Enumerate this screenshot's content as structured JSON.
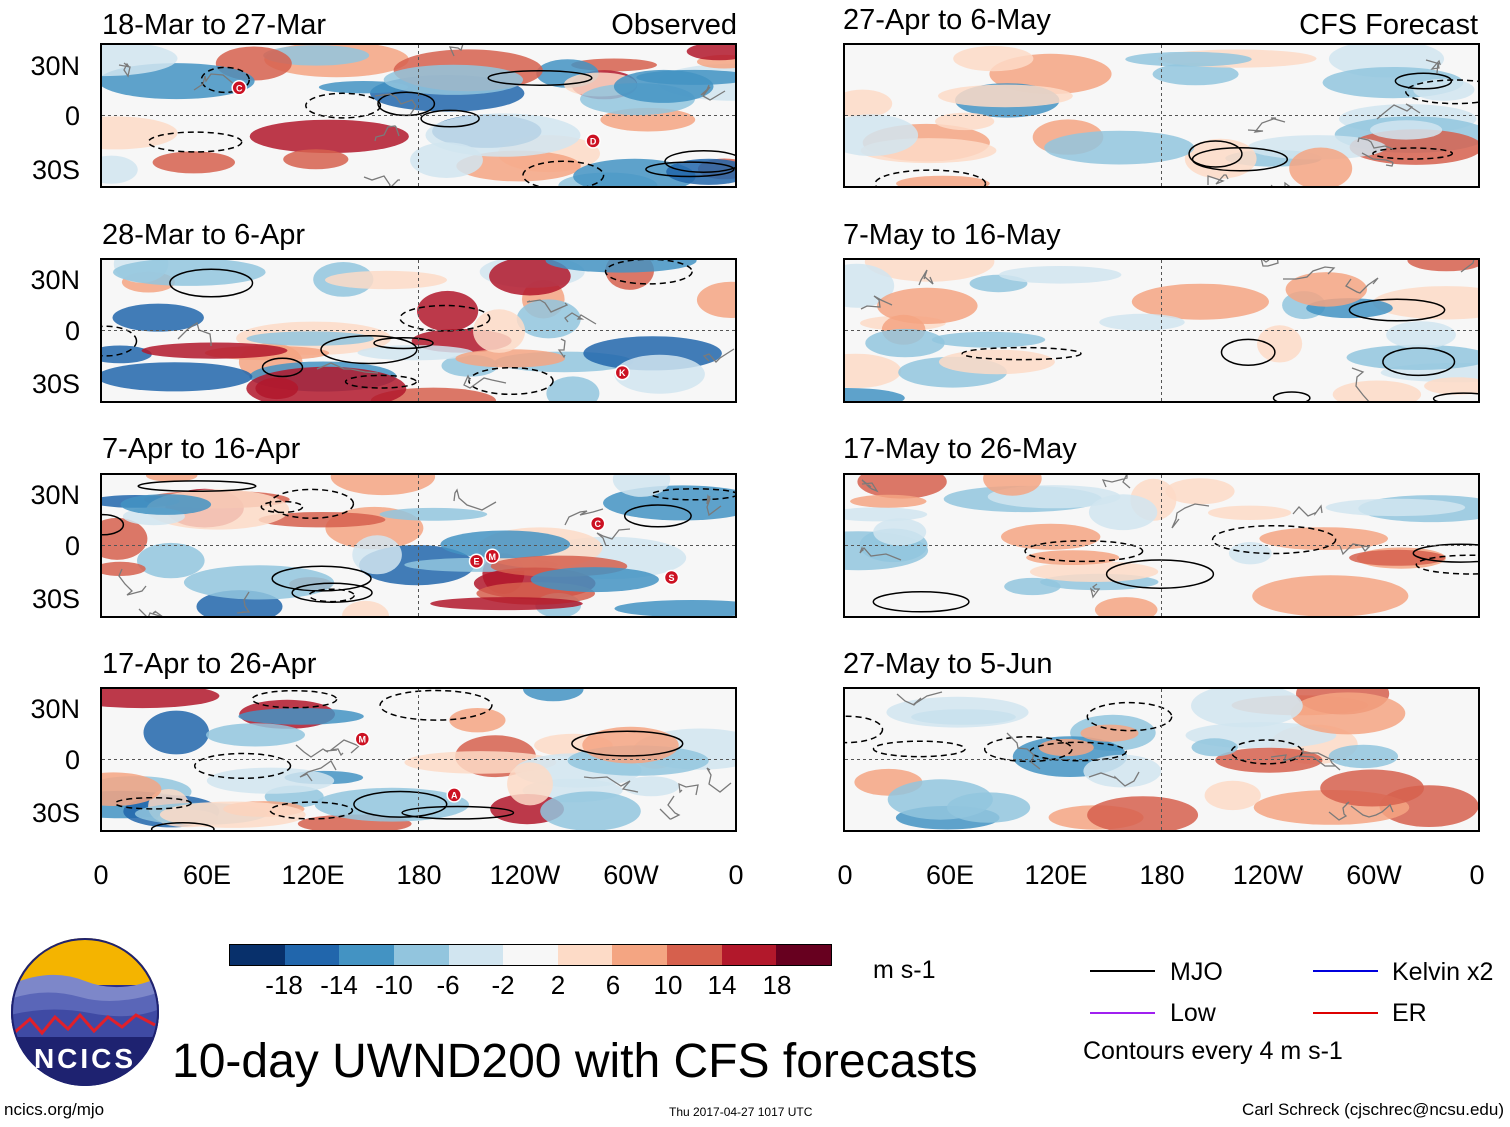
{
  "header": {
    "observed_label": "Observed",
    "forecast_label": "CFS Forecast"
  },
  "panels": {
    "observed": [
      {
        "title": "18-Mar to 27-Mar"
      },
      {
        "title": "28-Mar to 6-Apr"
      },
      {
        "title": "7-Apr to 16-Apr"
      },
      {
        "title": "17-Apr to 26-Apr"
      }
    ],
    "forecast": [
      {
        "title": "27-Apr to 6-May"
      },
      {
        "title": "7-May to 16-May"
      },
      {
        "title": "17-May to 26-May"
      },
      {
        "title": "27-May to 5-Jun"
      }
    ]
  },
  "axes": {
    "lat_labels": [
      "30N",
      "0",
      "30S"
    ],
    "lon_labels": [
      "0",
      "60E",
      "120E",
      "180",
      "120W",
      "60W",
      "0"
    ]
  },
  "colorbar": {
    "labels": [
      "-18",
      "-14",
      "-10",
      "-6",
      "-2",
      "2",
      "6",
      "10",
      "14",
      "18"
    ],
    "colors": [
      "#08306b",
      "#2166ac",
      "#4393c3",
      "#92c5de",
      "#d1e5f0",
      "#f7f7f7",
      "#fddbc7",
      "#f4a582",
      "#d6604d",
      "#b2182b",
      "#67001f"
    ],
    "units": "m s-1"
  },
  "legend": {
    "items": [
      {
        "label": "MJO",
        "color": "#000000"
      },
      {
        "label": "Kelvin x2",
        "color": "#0000dd"
      },
      {
        "label": "Low",
        "color": "#a020f0"
      },
      {
        "label": "ER",
        "color": "#dd0000"
      }
    ],
    "contours_note": "Contours every 4 m s-1"
  },
  "logo": {
    "text": "NCICS"
  },
  "footer": {
    "main_title": "10-day UWND200 with CFS forecasts",
    "url": "ncics.org/mjo",
    "timestamp": "Thu 2017-04-27 1017 UTC",
    "author": "Carl Schreck (cjschrec@ncsu.edu)"
  },
  "storm_markers": [
    {
      "panel": "observed-0",
      "letter": "C"
    },
    {
      "panel": "observed-0",
      "letter": "D"
    },
    {
      "panel": "observed-1",
      "letter": "K"
    },
    {
      "panel": "observed-2",
      "letter": "M"
    },
    {
      "panel": "observed-2",
      "letter": "S"
    },
    {
      "panel": "observed-2",
      "letter": "E"
    },
    {
      "panel": "observed-2",
      "letter": "C"
    },
    {
      "panel": "observed-3",
      "letter": "M"
    },
    {
      "panel": "observed-3",
      "letter": "A"
    }
  ]
}
